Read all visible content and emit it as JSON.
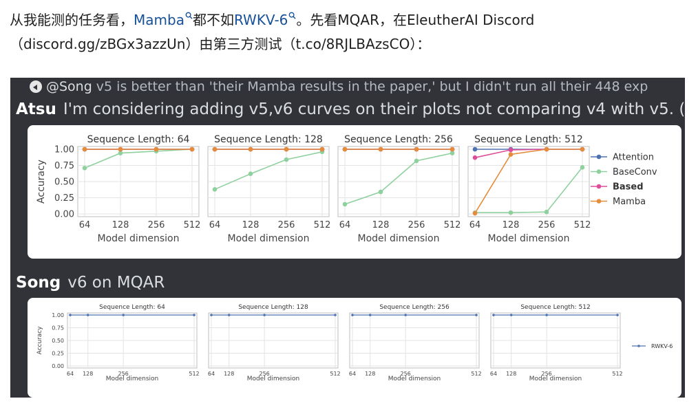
{
  "intro": {
    "line1_prefix": "从我能测的任务看，",
    "link_mamba": "Mamba",
    "line1_mid": "都不如",
    "link_rwkv": "RWKV-6",
    "line1_suffix": "。先看MQAR，在EleutherAI Discord",
    "line2_prefix": "（",
    "url1": "discord.gg/zBGx3azzUn",
    "line2_mid": "）由第三方测试（",
    "url2": "t.co/8RJLBAzsCO",
    "line2_suffix": "）："
  },
  "discord": {
    "reply_author": "@Song",
    "reply_text": "v5 is better than 'their Mamba results in the paper,' but I didn't run all their 448 exp",
    "msg1_author": "Atsu",
    "msg1_text": "I'm considering adding  v5,v6 curves on their plots not comparing v4 with v5. (",
    "msg2_author": "Song",
    "msg2_text": "v6 on MQAR"
  },
  "colors": {
    "discord_bg": "#313338",
    "attention": "#4c72b0",
    "baseconv": "#8fd19e",
    "based": "#dd4d9a",
    "mamba": "#e58c3a",
    "rwkv6": "#4c72b0"
  },
  "chart_data": [
    {
      "type": "line",
      "panels": [
        {
          "title": "Sequence Length: 64",
          "series": [
            {
              "name": "Attention",
              "values": [
                1.0,
                1.0,
                1.0,
                1.0
              ]
            },
            {
              "name": "BaseConv",
              "values": [
                0.71,
                0.94,
                0.97,
                1.0
              ]
            },
            {
              "name": "Based",
              "values": [
                1.0,
                1.0,
                1.0,
                1.0
              ]
            },
            {
              "name": "Mamba",
              "values": [
                1.0,
                1.0,
                1.0,
                1.0
              ]
            }
          ]
        },
        {
          "title": "Sequence Length: 128",
          "series": [
            {
              "name": "Attention",
              "values": [
                1.0,
                1.0,
                1.0,
                1.0
              ]
            },
            {
              "name": "BaseConv",
              "values": [
                0.38,
                0.62,
                0.84,
                0.96
              ]
            },
            {
              "name": "Based",
              "values": [
                1.0,
                1.0,
                1.0,
                1.0
              ]
            },
            {
              "name": "Mamba",
              "values": [
                1.0,
                1.0,
                1.0,
                1.0
              ]
            }
          ]
        },
        {
          "title": "Sequence Length: 256",
          "series": [
            {
              "name": "Attention",
              "values": [
                1.0,
                1.0,
                1.0,
                1.0
              ]
            },
            {
              "name": "BaseConv",
              "values": [
                0.15,
                0.34,
                0.82,
                0.94
              ]
            },
            {
              "name": "Based",
              "values": [
                1.0,
                1.0,
                1.0,
                1.0
              ]
            },
            {
              "name": "Mamba",
              "values": [
                1.0,
                1.0,
                1.0,
                1.0
              ]
            }
          ]
        },
        {
          "title": "Sequence Length: 512",
          "series": [
            {
              "name": "Attention",
              "values": [
                1.0,
                1.0,
                1.0,
                1.0
              ]
            },
            {
              "name": "BaseConv",
              "values": [
                0.02,
                0.02,
                0.03,
                0.72
              ]
            },
            {
              "name": "Based",
              "values": [
                0.87,
                0.99,
                1.0,
                1.0
              ]
            },
            {
              "name": "Mamba",
              "values": [
                0.01,
                0.92,
                1.0,
                1.0
              ]
            }
          ]
        }
      ],
      "x": [
        "64",
        "128",
        "256",
        "512"
      ],
      "xlabel": "Model dimension",
      "ylabel": "Accuracy",
      "yticks": [
        "0.00",
        "0.25",
        "0.50",
        "0.75",
        "1.00"
      ],
      "ylim": [
        0,
        1
      ],
      "grid": true,
      "legend": [
        "Attention",
        "BaseConv",
        "Based",
        "Mamba"
      ],
      "legend_position": "right"
    },
    {
      "type": "line",
      "panels": [
        {
          "title": "Sequence Length: 64",
          "series": [
            {
              "name": "RWKV-6",
              "values": [
                1.0,
                1.0,
                1.0,
                1.0
              ]
            }
          ]
        },
        {
          "title": "Sequence Length: 128",
          "series": [
            {
              "name": "RWKV-6",
              "values": [
                1.0,
                1.0,
                1.0,
                1.0
              ]
            }
          ]
        },
        {
          "title": "Sequence Length: 256",
          "series": [
            {
              "name": "RWKV-6",
              "values": [
                1.0,
                1.0,
                1.0,
                1.0
              ]
            }
          ]
        },
        {
          "title": "Sequence Length: 512",
          "series": [
            {
              "name": "RWKV-6",
              "values": [
                1.0,
                1.0,
                1.0,
                1.0
              ]
            }
          ]
        }
      ],
      "x": [
        64,
        128,
        256,
        512
      ],
      "xticks": [
        "64",
        "128",
        "256",
        "512"
      ],
      "xlabel": "Model dimension",
      "ylabel": "Accuracy",
      "yticks": [
        "0.00",
        "0.25",
        "0.50",
        "0.75",
        "1.00"
      ],
      "ylim": [
        0,
        1
      ],
      "grid": true,
      "legend": [
        "RWKV-6"
      ],
      "legend_position": "right"
    }
  ]
}
